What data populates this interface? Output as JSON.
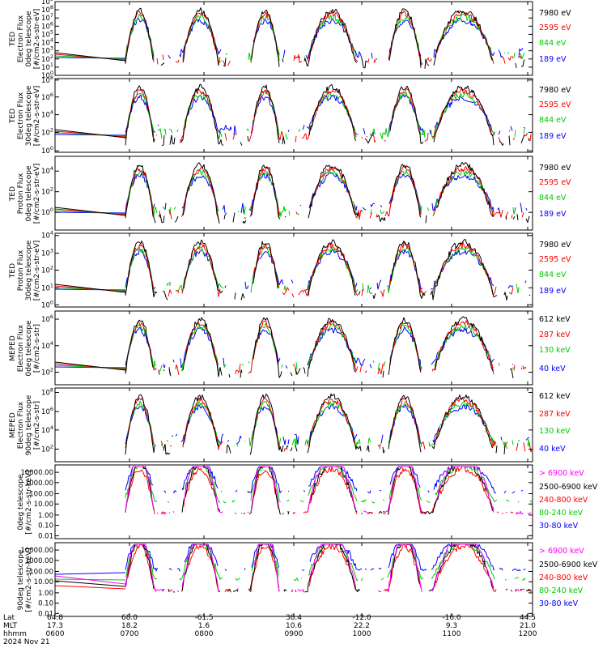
{
  "chart_data": [
    {
      "type": "line",
      "title": "",
      "ylabel": [
        "TED",
        "Electron Flux",
        "0deg telescope",
        "[#/cm2-s-str-eV]"
      ],
      "yscale": "log",
      "ylim_exp": [
        0,
        9
      ],
      "yticks": [
        "10^0",
        "10^1",
        "10^2",
        "10^3",
        "10^4",
        "10^5",
        "10^6",
        "10^7",
        "10^8",
        "10^9"
      ],
      "legend_placement": "right",
      "series": [
        {
          "name": "7980 eV",
          "color": "#000000"
        },
        {
          "name": "2595 eV",
          "color": "#ff0000"
        },
        {
          "name": "844 eV",
          "color": "#00cc00"
        },
        {
          "name": "189 eV",
          "color": "#0000ff"
        }
      ]
    },
    {
      "type": "line",
      "title": "",
      "ylabel": [
        "TED",
        "Electron Flux",
        "30deg telescope",
        "[#/cm2-s-str-eV]"
      ],
      "yscale": "log",
      "ylim_exp": [
        0,
        8
      ],
      "yticks": [
        "10^0",
        "10^2",
        "10^4",
        "10^6",
        "10^8"
      ],
      "legend_placement": "right",
      "series": [
        {
          "name": "7980 eV",
          "color": "#000000"
        },
        {
          "name": "2595 eV",
          "color": "#ff0000"
        },
        {
          "name": "844 eV",
          "color": "#00cc00"
        },
        {
          "name": "189 eV",
          "color": "#0000ff"
        }
      ]
    },
    {
      "type": "line",
      "title": "",
      "ylabel": [
        "TED",
        "Proton Flux",
        "0deg telescope",
        "[#/cm2-s-str-eV]"
      ],
      "yscale": "log",
      "ylim_exp": [
        -2,
        5
      ],
      "yticks": [
        "10^0",
        "10^2",
        "10^4"
      ],
      "legend_placement": "right",
      "series": [
        {
          "name": "7980 eV",
          "color": "#000000"
        },
        {
          "name": "2595 eV",
          "color": "#ff0000"
        },
        {
          "name": "844 eV",
          "color": "#00cc00"
        },
        {
          "name": "189 eV",
          "color": "#0000ff"
        }
      ]
    },
    {
      "type": "line",
      "title": "",
      "ylabel": [
        "TED",
        "Proton Flux",
        "30deg telescope",
        "[#/cm2-s-str-eV]"
      ],
      "yscale": "log",
      "ylim_exp": [
        0,
        4
      ],
      "yticks": [
        "10^0",
        "10^1",
        "10^2",
        "10^3",
        "10^4"
      ],
      "legend_placement": "right",
      "series": [
        {
          "name": "7980 eV",
          "color": "#000000"
        },
        {
          "name": "2595 eV",
          "color": "#ff0000"
        },
        {
          "name": "844 eV",
          "color": "#00cc00"
        },
        {
          "name": "189 eV",
          "color": "#0000ff"
        }
      ]
    },
    {
      "type": "line",
      "title": "",
      "ylabel": [
        "MEPED",
        "Electron Flux",
        "0deg telescope",
        "[#/cm2-s-str]"
      ],
      "yscale": "log",
      "ylim_exp": [
        1.5,
        7
      ],
      "yticks": [
        "10^2",
        "10^4",
        "10^6"
      ],
      "legend_placement": "right",
      "series": [
        {
          "name": "612 keV",
          "color": "#000000"
        },
        {
          "name": "287 keV",
          "color": "#ff0000"
        },
        {
          "name": "130 keV",
          "color": "#00cc00"
        },
        {
          "name": "40 keV",
          "color": "#0000ff"
        }
      ]
    },
    {
      "type": "line",
      "title": "",
      "ylabel": [
        "MEPED",
        "Electron Flux",
        "90deg telescope",
        "[#/cm2-s-str]"
      ],
      "yscale": "log",
      "ylim_exp": [
        1.5,
        8
      ],
      "yticks": [
        "10^2",
        "10^4",
        "10^6",
        "10^8"
      ],
      "legend_placement": "right",
      "series": [
        {
          "name": "612 keV",
          "color": "#000000"
        },
        {
          "name": "287 keV",
          "color": "#ff0000"
        },
        {
          "name": "130 keV",
          "color": "#00cc00"
        },
        {
          "name": "40 keV",
          "color": "#0000ff"
        }
      ]
    },
    {
      "type": "line",
      "title": "",
      "ylabel": [
        "0deg telescope",
        "[#/cm2-s-str-keV]"
      ],
      "yscale": "log",
      "yticks": [
        "0.01",
        "0.10",
        "1.00",
        "10.00",
        "100.00",
        "1000.00",
        "10000.00"
      ],
      "legend_placement": "right",
      "series": [
        {
          "name": "> 6900 keV",
          "color": "#ff00ff"
        },
        {
          "name": "2500-6900 keV",
          "color": "#000000"
        },
        {
          "name": "240-800 keV",
          "color": "#ff0000"
        },
        {
          "name": "80-240 keV",
          "color": "#00cc00"
        },
        {
          "name": "30-80 keV",
          "color": "#0000ff"
        }
      ]
    },
    {
      "type": "line",
      "title": "",
      "ylabel": [
        "90deg telescope",
        "[#/cm2-s-str-keV]"
      ],
      "yscale": "log",
      "yticks": [
        "0.01",
        "0.10",
        "1.00",
        "10.00",
        "100.00",
        "1000.00",
        "10000.00"
      ],
      "legend_placement": "right",
      "series": [
        {
          "name": "> 6900 keV",
          "color": "#ff00ff"
        },
        {
          "name": "2500-6900 keV",
          "color": "#000000"
        },
        {
          "name": "240-800 keV",
          "color": "#ff0000"
        },
        {
          "name": "80-240 keV",
          "color": "#00cc00"
        },
        {
          "name": "30-80 keV",
          "color": "#0000ff"
        }
      ]
    }
  ],
  "x_axis": {
    "row_labels": [
      "Lat",
      "MLT",
      "hhmm"
    ],
    "ticks": [
      {
        "lat": "64.8",
        "mlt": "17.3",
        "hhmm": "0600"
      },
      {
        "lat": "68.0",
        "mlt": "18.2",
        "hhmm": "0700"
      },
      {
        "lat": "-61.5",
        "mlt": "1.6",
        "hhmm": "0800"
      },
      {
        "lat": "38.4",
        "mlt": "10.6",
        "hhmm": "0900"
      },
      {
        "lat": "-12.0",
        "mlt": "22.2",
        "hhmm": "1000"
      },
      {
        "lat": "-16.0",
        "mlt": "9.3",
        "hhmm": "1100"
      },
      {
        "lat": "44.5",
        "mlt": "21.0",
        "hhmm": "1200"
      }
    ],
    "date": "2024 Nov 21"
  },
  "colors": {
    "black": "#000000",
    "red": "#ff0000",
    "green": "#00cc00",
    "blue": "#0000ff",
    "magenta": "#ff00ff"
  }
}
